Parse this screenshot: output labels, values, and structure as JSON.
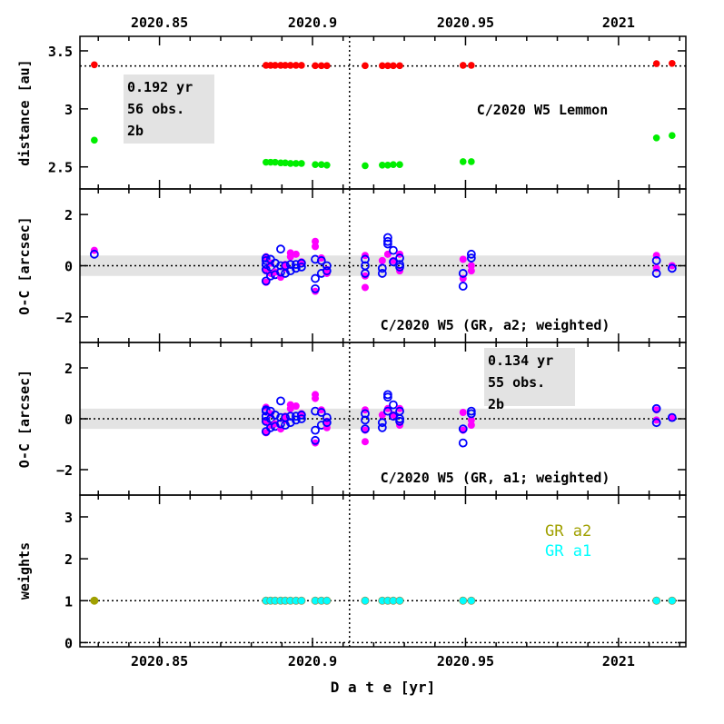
{
  "chart_data": {
    "type": "scatter",
    "xlabel": "D a t e [yr]",
    "xlim": [
      2020.824,
      2021.022
    ],
    "xticks": [
      2020.85,
      2020.9,
      2020.95,
      2021
    ],
    "xtick_labels": [
      "2020.85",
      "2020.9",
      "2020.95",
      "2021"
    ],
    "perihelion_marker": 2020.9121,
    "panels": [
      {
        "id": "distance",
        "ylabel": "distance [au]",
        "ylim": [
          2.31,
          3.625
        ],
        "yticks": [
          2.5,
          3,
          3.5
        ],
        "ytick_labels": [
          "2.5",
          "3",
          "3.5"
        ],
        "title": "C/2020 W5 Lemmon",
        "hline": 3.37,
        "info": [
          "0.192 yr",
          "56 obs.",
          "2b"
        ],
        "series": [
          {
            "name": "heliocentric distance",
            "color": "#ff0000",
            "x": [
              2020.8287,
              2020.8848,
              2020.8863,
              2020.8878,
              2020.8896,
              2020.8911,
              2020.8928,
              2020.8946,
              2020.8964,
              2020.9009,
              2020.9029,
              2020.9047,
              2020.9172,
              2020.9228,
              2020.9246,
              2020.9264,
              2020.9285,
              2020.9492,
              2020.9519,
              2021.0124,
              2021.0175
            ],
            "y": [
              3.38,
              3.375,
              3.375,
              3.375,
              3.375,
              3.375,
              3.375,
              3.375,
              3.375,
              3.372,
              3.372,
              3.372,
              3.372,
              3.372,
              3.372,
              3.372,
              3.372,
              3.375,
              3.375,
              3.39,
              3.392
            ]
          },
          {
            "name": "geocentric distance",
            "color": "#00ee00",
            "x": [
              2020.8287,
              2020.8848,
              2020.8863,
              2020.8878,
              2020.8896,
              2020.8911,
              2020.8928,
              2020.8946,
              2020.8964,
              2020.9009,
              2020.9029,
              2020.9047,
              2020.9172,
              2020.9228,
              2020.9246,
              2020.9264,
              2020.9285,
              2020.9492,
              2020.9519,
              2021.0124,
              2021.0175
            ],
            "y": [
              2.73,
              2.54,
              2.54,
              2.54,
              2.535,
              2.535,
              2.53,
              2.53,
              2.53,
              2.52,
              2.52,
              2.515,
              2.51,
              2.515,
              2.515,
              2.52,
              2.52,
              2.545,
              2.545,
              2.75,
              2.77
            ]
          }
        ]
      },
      {
        "id": "oc-a2",
        "ylabel": "O-C [arcsec]",
        "ylim": [
          -3,
          3
        ],
        "yticks": [
          -2,
          0,
          2
        ],
        "ytick_labels": [
          "−2",
          "0",
          "2"
        ],
        "title": "C/2020 W5 (GR, a2; weighted)",
        "band": 0.4,
        "points": [
          {
            "x": 2020.8287,
            "ra": [
              0.6
            ],
            "dec": [
              0.45
            ]
          },
          {
            "x": 2020.8848,
            "ra": [
              0.35,
              -0.2,
              -0.65
            ],
            "dec": [
              0.2,
              0.05,
              -0.15,
              -0.6,
              0.3
            ]
          },
          {
            "x": 2020.8863,
            "ra": [
              0.1,
              -0.3
            ],
            "dec": [
              0.25,
              -0.05,
              -0.4
            ]
          },
          {
            "x": 2020.8878,
            "ra": [
              -0.25
            ],
            "dec": [
              0.1,
              -0.35
            ]
          },
          {
            "x": 2020.8896,
            "ra": [
              -0.45
            ],
            "dec": [
              0.65,
              0.0,
              -0.25
            ]
          },
          {
            "x": 2020.8911,
            "ra": [
              0.05,
              -0.1
            ],
            "dec": [
              0.0,
              -0.3
            ]
          },
          {
            "x": 2020.8928,
            "ra": [
              0.5,
              0.35
            ],
            "dec": [
              0.05,
              -0.2
            ]
          },
          {
            "x": 2020.8946,
            "ra": [
              0.45
            ],
            "dec": [
              -0.1,
              0.05
            ]
          },
          {
            "x": 2020.8964,
            "ra": [
              0.15
            ],
            "dec": [
              -0.05,
              0.1
            ]
          },
          {
            "x": 2020.9009,
            "ra": [
              0.95,
              0.75,
              -1.0
            ],
            "dec": [
              0.25,
              -0.5,
              -0.9
            ]
          },
          {
            "x": 2020.9029,
            "ra": [
              0.3
            ],
            "dec": [
              -0.3,
              0.2
            ]
          },
          {
            "x": 2020.9047,
            "ra": [
              -0.3,
              -0.15
            ],
            "dec": [
              0.0,
              -0.2
            ]
          },
          {
            "x": 2020.9172,
            "ra": [
              0.4,
              -0.85,
              -0.4
            ],
            "dec": [
              0.25,
              0.0,
              -0.3
            ]
          },
          {
            "x": 2020.9228,
            "ra": [
              0.2
            ],
            "dec": [
              -0.1,
              -0.3
            ]
          },
          {
            "x": 2020.9246,
            "ra": [
              0.45
            ],
            "dec": [
              1.1,
              0.95,
              0.85
            ]
          },
          {
            "x": 2020.9264,
            "ra": [
              0.2
            ],
            "dec": [
              0.6,
              0.15
            ]
          },
          {
            "x": 2020.9285,
            "ra": [
              0.45,
              -0.2
            ],
            "dec": [
              0.3,
              0.05,
              -0.05
            ]
          },
          {
            "x": 2020.9492,
            "ra": [
              0.25,
              -0.5
            ],
            "dec": [
              -0.3,
              -0.8
            ]
          },
          {
            "x": 2020.9519,
            "ra": [
              0.0,
              -0.2
            ],
            "dec": [
              0.45,
              0.3
            ]
          },
          {
            "x": 2021.0124,
            "ra": [
              0.4,
              -0.1
            ],
            "dec": [
              0.2,
              -0.3
            ]
          },
          {
            "x": 2021.0175,
            "ra": [
              0.0
            ],
            "dec": [
              -0.1
            ]
          }
        ]
      },
      {
        "id": "oc-a1",
        "ylabel": "O-C [arcsec]",
        "ylim": [
          -3,
          3
        ],
        "yticks": [
          -2,
          0,
          2
        ],
        "ytick_labels": [
          "−2",
          "0",
          "2"
        ],
        "title": "C/2020 W5 (GR, a1; weighted)",
        "band": 0.4,
        "info": [
          "0.134 yr",
          "55 obs.",
          "2b"
        ],
        "points": [
          {
            "x": 2020.8848,
            "ra": [
              0.45,
              -0.1,
              -0.55
            ],
            "dec": [
              0.3,
              0.1,
              -0.1,
              -0.5,
              0.35
            ]
          },
          {
            "x": 2020.8863,
            "ra": [
              0.2,
              -0.25
            ],
            "dec": [
              0.3,
              0.0,
              -0.35
            ]
          },
          {
            "x": 2020.8878,
            "ra": [
              -0.2
            ],
            "dec": [
              0.15,
              -0.3
            ]
          },
          {
            "x": 2020.8896,
            "ra": [
              -0.4
            ],
            "dec": [
              0.7,
              0.05,
              -0.2
            ]
          },
          {
            "x": 2020.8911,
            "ra": [
              0.1,
              -0.05
            ],
            "dec": [
              0.05,
              -0.25
            ]
          },
          {
            "x": 2020.8928,
            "ra": [
              0.55,
              0.4
            ],
            "dec": [
              0.1,
              -0.15
            ]
          },
          {
            "x": 2020.8946,
            "ra": [
              0.5
            ],
            "dec": [
              -0.05,
              0.1
            ]
          },
          {
            "x": 2020.8964,
            "ra": [
              0.2
            ],
            "dec": [
              0.0,
              0.15
            ]
          },
          {
            "x": 2020.9009,
            "ra": [
              0.95,
              0.8,
              -0.95
            ],
            "dec": [
              0.3,
              -0.45,
              -0.85
            ]
          },
          {
            "x": 2020.9029,
            "ra": [
              0.35
            ],
            "dec": [
              -0.25,
              0.25
            ]
          },
          {
            "x": 2020.9047,
            "ra": [
              -0.35,
              -0.1
            ],
            "dec": [
              0.05,
              -0.15
            ]
          },
          {
            "x": 2020.9172,
            "ra": [
              0.35,
              -0.9,
              -0.45
            ],
            "dec": [
              0.2,
              -0.05,
              -0.4
            ]
          },
          {
            "x": 2020.9228,
            "ra": [
              0.15
            ],
            "dec": [
              -0.15,
              -0.35
            ]
          },
          {
            "x": 2020.9246,
            "ra": [
              0.4
            ],
            "dec": [
              0.95,
              0.85,
              0.3
            ]
          },
          {
            "x": 2020.9264,
            "ra": [
              0.15
            ],
            "dec": [
              0.55,
              0.1
            ]
          },
          {
            "x": 2020.9285,
            "ra": [
              0.4,
              -0.25
            ],
            "dec": [
              0.3,
              0.0,
              -0.1
            ]
          },
          {
            "x": 2020.9492,
            "ra": [
              0.25,
              -0.45
            ],
            "dec": [
              -0.4,
              -0.95
            ]
          },
          {
            "x": 2020.9519,
            "ra": [
              -0.05,
              -0.25
            ],
            "dec": [
              0.3,
              0.2
            ]
          },
          {
            "x": 2021.0124,
            "ra": [
              0.35,
              -0.05
            ],
            "dec": [
              0.4,
              -0.15
            ]
          },
          {
            "x": 2021.0175,
            "ra": [
              0.05
            ],
            "dec": [
              0.05
            ]
          }
        ]
      },
      {
        "id": "weights",
        "ylabel": "weights",
        "ylim": [
          -0.1,
          3.52
        ],
        "yticks": [
          0,
          1,
          2,
          3
        ],
        "ytick_labels": [
          "0",
          "1",
          "2",
          "3"
        ],
        "hline": 1,
        "hline0": 0,
        "legend": [
          {
            "name": "GR a2",
            "color": "#a0a000"
          },
          {
            "name": "GR a1",
            "color": "#00ffff"
          }
        ],
        "x": [
          2020.8287,
          2020.8848,
          2020.8863,
          2020.8878,
          2020.8896,
          2020.8911,
          2020.8928,
          2020.8946,
          2020.8964,
          2020.9009,
          2020.9029,
          2020.9047,
          2020.9172,
          2020.9228,
          2020.9246,
          2020.9264,
          2020.9285,
          2020.9492,
          2020.9519,
          2021.0124,
          2021.0175
        ],
        "a2": [
          1,
          1,
          1,
          1,
          1,
          1,
          1,
          1,
          1,
          1,
          1,
          1,
          1,
          1,
          1,
          1,
          1,
          1,
          1,
          1,
          1
        ],
        "a1": [
          null,
          1,
          1,
          1,
          1,
          1,
          1,
          1,
          1,
          1,
          1,
          1,
          1,
          1,
          1,
          1,
          1,
          1,
          1,
          1,
          1
        ]
      }
    ],
    "colors": {
      "ra": "#ff00ff",
      "dec": "#0000ff"
    }
  }
}
